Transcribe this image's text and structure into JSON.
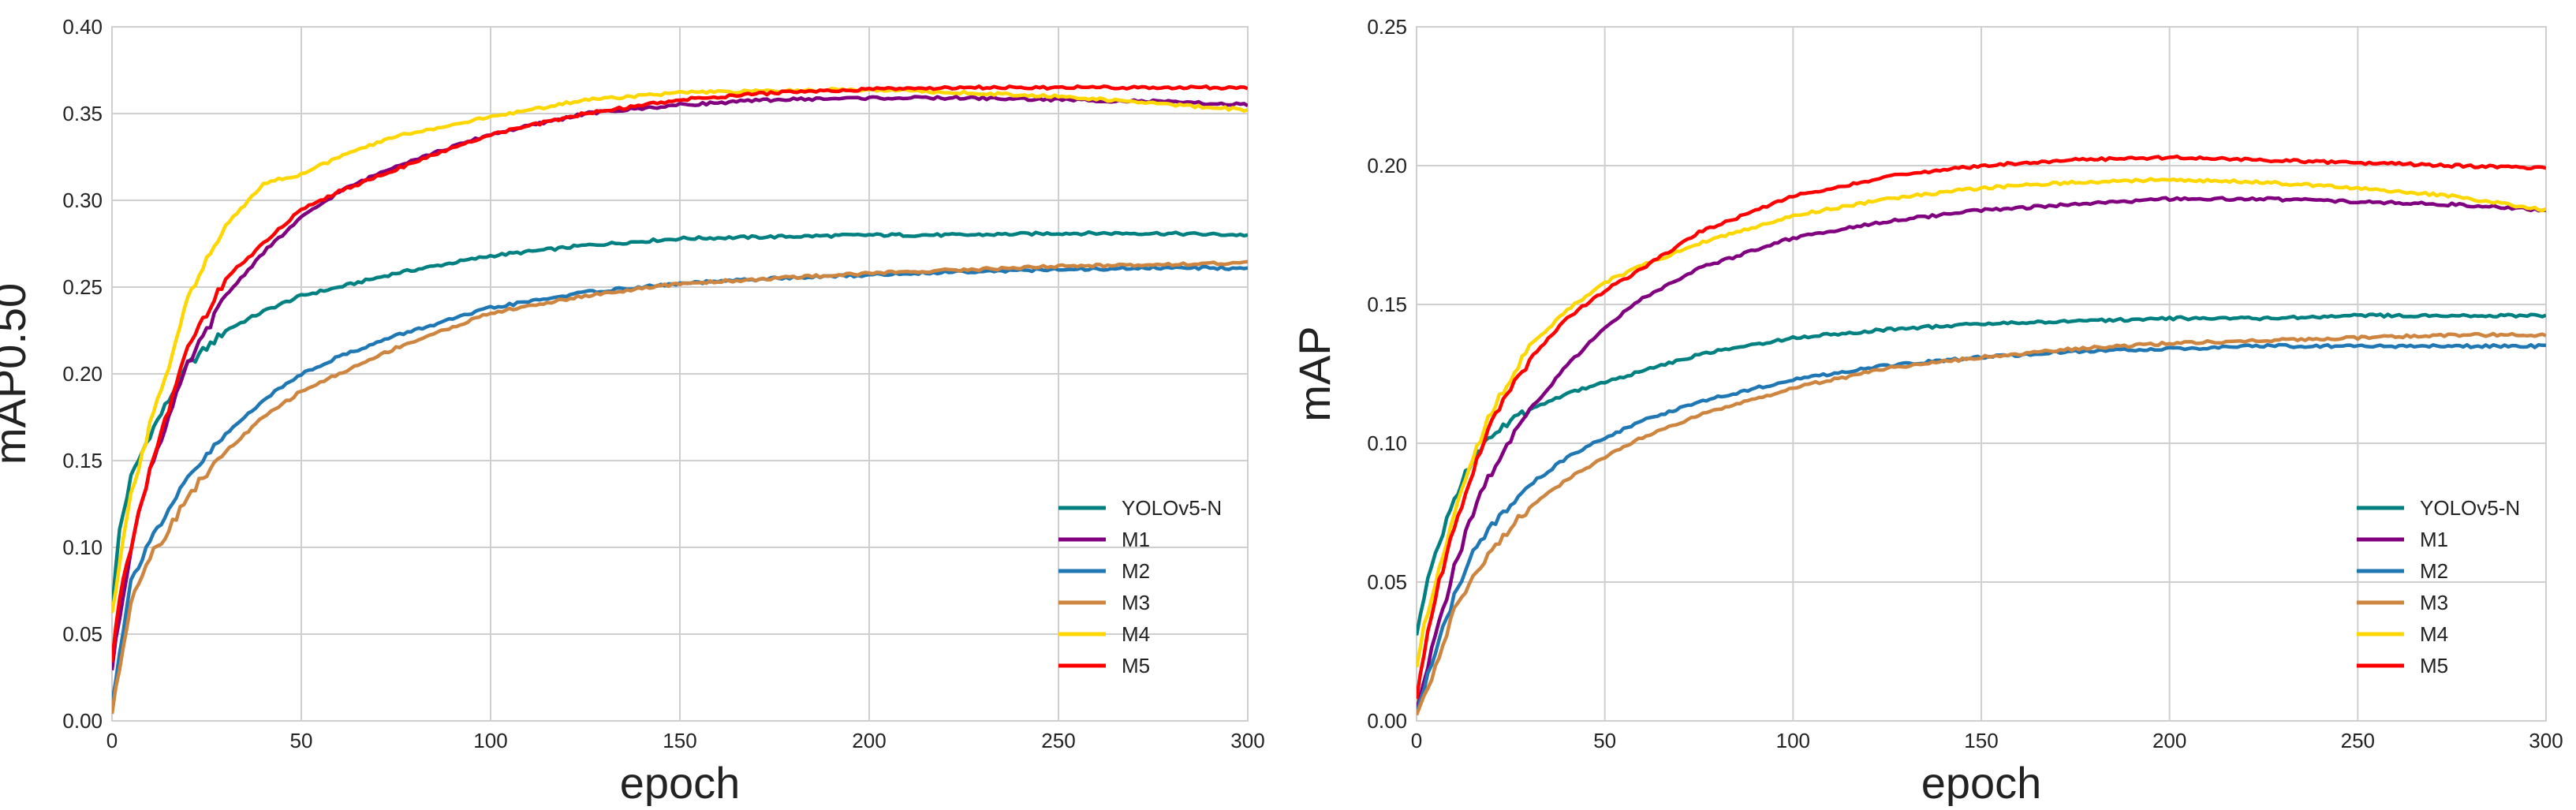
{
  "series_colors": {
    "YOLOv5-N": "#008080",
    "M1": "#800080",
    "M2": "#1f77b4",
    "M3": "#cd853f",
    "M4": "#ffd700",
    "M5": "#ff0000"
  },
  "chart_data": [
    {
      "type": "line",
      "title": "",
      "xlabel": "epoch",
      "ylabel": "mAP0.50",
      "xlim": [
        0,
        300
      ],
      "ylim": [
        0,
        0.4
      ],
      "xticks": [
        0,
        50,
        100,
        150,
        200,
        250,
        300
      ],
      "yticks": [
        0.0,
        0.05,
        0.1,
        0.15,
        0.2,
        0.25,
        0.3,
        0.35,
        0.4
      ],
      "xtick_labels": [
        "0",
        "50",
        "100",
        "150",
        "200",
        "250",
        "300"
      ],
      "ytick_labels": [
        "0.00",
        "0.05",
        "0.10",
        "0.15",
        "0.20",
        "0.25",
        "0.30",
        "0.35",
        "0.40"
      ],
      "grid": true,
      "legend_position": "bottom-right",
      "x": [
        0,
        2,
        5,
        10,
        15,
        20,
        30,
        40,
        50,
        60,
        75,
        100,
        125,
        150,
        175,
        200,
        225,
        250,
        275,
        300
      ],
      "series": [
        {
          "name": "YOLOv5-N",
          "values": [
            0.065,
            0.11,
            0.14,
            0.165,
            0.185,
            0.205,
            0.225,
            0.236,
            0.245,
            0.25,
            0.258,
            0.268,
            0.274,
            0.278,
            0.279,
            0.28,
            0.28,
            0.281,
            0.281,
            0.28
          ]
        },
        {
          "name": "M1",
          "values": [
            0.03,
            0.06,
            0.1,
            0.145,
            0.175,
            0.205,
            0.245,
            0.27,
            0.29,
            0.305,
            0.32,
            0.338,
            0.35,
            0.355,
            0.358,
            0.359,
            0.359,
            0.358,
            0.357,
            0.355
          ]
        },
        {
          "name": "M2",
          "values": [
            0.01,
            0.04,
            0.08,
            0.105,
            0.12,
            0.14,
            0.165,
            0.185,
            0.2,
            0.21,
            0.222,
            0.238,
            0.247,
            0.252,
            0.255,
            0.257,
            0.259,
            0.26,
            0.261,
            0.261
          ]
        },
        {
          "name": "M3",
          "values": [
            0.005,
            0.03,
            0.07,
            0.095,
            0.11,
            0.13,
            0.155,
            0.175,
            0.19,
            0.2,
            0.215,
            0.235,
            0.245,
            0.252,
            0.255,
            0.258,
            0.26,
            0.262,
            0.263,
            0.264
          ]
        },
        {
          "name": "M4",
          "values": [
            0.06,
            0.09,
            0.13,
            0.17,
            0.205,
            0.245,
            0.285,
            0.31,
            0.315,
            0.325,
            0.337,
            0.348,
            0.358,
            0.362,
            0.363,
            0.364,
            0.362,
            0.36,
            0.356,
            0.352
          ]
        },
        {
          "name": "M5",
          "values": [
            0.035,
            0.07,
            0.1,
            0.145,
            0.18,
            0.215,
            0.255,
            0.275,
            0.295,
            0.305,
            0.318,
            0.338,
            0.35,
            0.358,
            0.362,
            0.364,
            0.365,
            0.365,
            0.365,
            0.365
          ]
        }
      ]
    },
    {
      "type": "line",
      "title": "",
      "xlabel": "epoch",
      "ylabel": "mAP",
      "xlim": [
        0,
        300
      ],
      "ylim": [
        0,
        0.25
      ],
      "xticks": [
        0,
        50,
        100,
        150,
        200,
        250,
        300
      ],
      "yticks": [
        0.0,
        0.05,
        0.1,
        0.15,
        0.2,
        0.25
      ],
      "xtick_labels": [
        "0",
        "50",
        "100",
        "150",
        "200",
        "250",
        "300"
      ],
      "ytick_labels": [
        "0.00",
        "0.05",
        "0.10",
        "0.15",
        "0.20",
        "0.25"
      ],
      "grid": true,
      "legend_position": "bottom-right",
      "x": [
        0,
        2,
        5,
        10,
        15,
        20,
        30,
        40,
        50,
        60,
        75,
        100,
        125,
        150,
        175,
        200,
        225,
        250,
        275,
        300
      ],
      "series": [
        {
          "name": "YOLOv5-N",
          "values": [
            0.03,
            0.045,
            0.06,
            0.08,
            0.095,
            0.103,
            0.112,
            0.118,
            0.122,
            0.126,
            0.132,
            0.138,
            0.141,
            0.143,
            0.144,
            0.145,
            0.145,
            0.146,
            0.146,
            0.146
          ]
        },
        {
          "name": "M1",
          "values": [
            0.003,
            0.015,
            0.03,
            0.055,
            0.075,
            0.09,
            0.112,
            0.128,
            0.142,
            0.152,
            0.163,
            0.174,
            0.18,
            0.184,
            0.186,
            0.188,
            0.188,
            0.187,
            0.186,
            0.184
          ]
        },
        {
          "name": "M2",
          "values": [
            0.002,
            0.012,
            0.025,
            0.045,
            0.06,
            0.07,
            0.085,
            0.095,
            0.102,
            0.108,
            0.115,
            0.123,
            0.128,
            0.131,
            0.133,
            0.134,
            0.135,
            0.135,
            0.135,
            0.135
          ]
        },
        {
          "name": "M3",
          "values": [
            0.001,
            0.008,
            0.02,
            0.04,
            0.052,
            0.062,
            0.077,
            0.087,
            0.095,
            0.102,
            0.11,
            0.12,
            0.127,
            0.131,
            0.134,
            0.136,
            0.137,
            0.138,
            0.139,
            0.139
          ]
        },
        {
          "name": "M4",
          "values": [
            0.02,
            0.035,
            0.05,
            0.075,
            0.095,
            0.112,
            0.135,
            0.148,
            0.158,
            0.164,
            0.172,
            0.182,
            0.188,
            0.192,
            0.194,
            0.195,
            0.194,
            0.192,
            0.189,
            0.184
          ]
        },
        {
          "name": "M5",
          "values": [
            0.008,
            0.025,
            0.045,
            0.07,
            0.09,
            0.108,
            0.13,
            0.145,
            0.155,
            0.163,
            0.176,
            0.189,
            0.196,
            0.2,
            0.202,
            0.203,
            0.202,
            0.201,
            0.2,
            0.199
          ]
        }
      ]
    }
  ]
}
